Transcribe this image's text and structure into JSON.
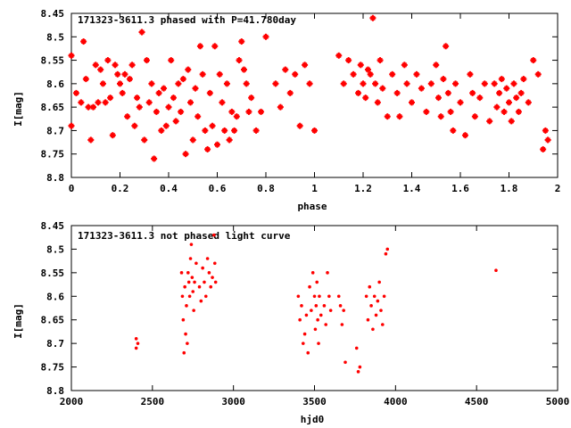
{
  "chart_data": [
    {
      "type": "scatter",
      "title": "171323-3611.3 phased with P=41.780day",
      "xlabel": "phase",
      "ylabel": "I[mag]",
      "xlim": [
        0,
        2
      ],
      "ylim": [
        8.45,
        8.8
      ],
      "y_inverted": true,
      "grid": false,
      "color": "#ff0000",
      "x_ticks": [
        "0",
        "0.2",
        "0.4",
        "0.6",
        "0.8",
        "1",
        "1.2",
        "1.4",
        "1.6",
        "1.8",
        "2"
      ],
      "y_ticks": [
        "8.45",
        "8.5",
        "8.55",
        "8.6",
        "8.65",
        "8.7",
        "8.75",
        "8.8"
      ],
      "points": [
        [
          0.0,
          8.54
        ],
        [
          0.0,
          8.69
        ],
        [
          0.02,
          8.62
        ],
        [
          0.04,
          8.64
        ],
        [
          0.05,
          8.51
        ],
        [
          0.06,
          8.59
        ],
        [
          0.07,
          8.65
        ],
        [
          0.08,
          8.72
        ],
        [
          0.09,
          8.65
        ],
        [
          0.1,
          8.56
        ],
        [
          0.11,
          8.64
        ],
        [
          0.12,
          8.57
        ],
        [
          0.13,
          8.6
        ],
        [
          0.14,
          8.64
        ],
        [
          0.15,
          8.55
        ],
        [
          0.16,
          8.63
        ],
        [
          0.17,
          8.71
        ],
        [
          0.18,
          8.56
        ],
        [
          0.19,
          8.58
        ],
        [
          0.2,
          8.6
        ],
        [
          0.21,
          8.62
        ],
        [
          0.22,
          8.58
        ],
        [
          0.23,
          8.67
        ],
        [
          0.24,
          8.59
        ],
        [
          0.25,
          8.56
        ],
        [
          0.26,
          8.69
        ],
        [
          0.27,
          8.63
        ],
        [
          0.28,
          8.65
        ],
        [
          0.29,
          8.49
        ],
        [
          0.3,
          8.72
        ],
        [
          0.31,
          8.55
        ],
        [
          0.32,
          8.64
        ],
        [
          0.33,
          8.6
        ],
        [
          0.34,
          8.76
        ],
        [
          0.35,
          8.66
        ],
        [
          0.36,
          8.62
        ],
        [
          0.37,
          8.7
        ],
        [
          0.38,
          8.61
        ],
        [
          0.39,
          8.69
        ],
        [
          0.4,
          8.65
        ],
        [
          0.41,
          8.55
        ],
        [
          0.42,
          8.63
        ],
        [
          0.43,
          8.68
        ],
        [
          0.44,
          8.6
        ],
        [
          0.45,
          8.66
        ],
        [
          0.46,
          8.59
        ],
        [
          0.47,
          8.75
        ],
        [
          0.48,
          8.57
        ],
        [
          0.49,
          8.64
        ],
        [
          0.5,
          8.72
        ],
        [
          0.51,
          8.61
        ],
        [
          0.52,
          8.67
        ],
        [
          0.53,
          8.52
        ],
        [
          0.54,
          8.58
        ],
        [
          0.55,
          8.7
        ],
        [
          0.56,
          8.74
        ],
        [
          0.57,
          8.62
        ],
        [
          0.58,
          8.69
        ],
        [
          0.59,
          8.52
        ],
        [
          0.6,
          8.73
        ],
        [
          0.61,
          8.58
        ],
        [
          0.62,
          8.64
        ],
        [
          0.63,
          8.7
        ],
        [
          0.64,
          8.6
        ],
        [
          0.65,
          8.72
        ],
        [
          0.66,
          8.66
        ],
        [
          0.67,
          8.7
        ],
        [
          0.68,
          8.67
        ],
        [
          0.69,
          8.55
        ],
        [
          0.7,
          8.51
        ],
        [
          0.71,
          8.57
        ],
        [
          0.72,
          8.6
        ],
        [
          0.73,
          8.66
        ],
        [
          0.74,
          8.63
        ],
        [
          0.76,
          8.7
        ],
        [
          0.78,
          8.66
        ],
        [
          0.8,
          8.5
        ],
        [
          0.84,
          8.6
        ],
        [
          0.86,
          8.65
        ],
        [
          0.88,
          8.57
        ],
        [
          0.9,
          8.62
        ],
        [
          0.92,
          8.58
        ],
        [
          0.94,
          8.69
        ],
        [
          0.96,
          8.56
        ],
        [
          0.98,
          8.6
        ],
        [
          1.0,
          8.7
        ],
        [
          1.1,
          8.54
        ],
        [
          1.12,
          8.6
        ],
        [
          1.14,
          8.55
        ],
        [
          1.16,
          8.58
        ],
        [
          1.18,
          8.62
        ],
        [
          1.19,
          8.56
        ],
        [
          1.2,
          8.6
        ],
        [
          1.21,
          8.63
        ],
        [
          1.22,
          8.57
        ],
        [
          1.23,
          8.58
        ],
        [
          1.24,
          8.46
        ],
        [
          1.25,
          8.6
        ],
        [
          1.26,
          8.64
        ],
        [
          1.27,
          8.55
        ],
        [
          1.28,
          8.61
        ],
        [
          1.3,
          8.67
        ],
        [
          1.32,
          8.58
        ],
        [
          1.34,
          8.62
        ],
        [
          1.35,
          8.67
        ],
        [
          1.37,
          8.56
        ],
        [
          1.38,
          8.6
        ],
        [
          1.4,
          8.64
        ],
        [
          1.42,
          8.58
        ],
        [
          1.44,
          8.61
        ],
        [
          1.46,
          8.66
        ],
        [
          1.48,
          8.6
        ],
        [
          1.5,
          8.56
        ],
        [
          1.51,
          8.63
        ],
        [
          1.52,
          8.67
        ],
        [
          1.53,
          8.59
        ],
        [
          1.54,
          8.52
        ],
        [
          1.55,
          8.62
        ],
        [
          1.56,
          8.66
        ],
        [
          1.57,
          8.7
        ],
        [
          1.58,
          8.6
        ],
        [
          1.6,
          8.64
        ],
        [
          1.62,
          8.71
        ],
        [
          1.64,
          8.58
        ],
        [
          1.65,
          8.62
        ],
        [
          1.66,
          8.67
        ],
        [
          1.68,
          8.63
        ],
        [
          1.7,
          8.6
        ],
        [
          1.72,
          8.68
        ],
        [
          1.74,
          8.6
        ],
        [
          1.75,
          8.65
        ],
        [
          1.76,
          8.62
        ],
        [
          1.77,
          8.59
        ],
        [
          1.78,
          8.66
        ],
        [
          1.79,
          8.61
        ],
        [
          1.8,
          8.64
        ],
        [
          1.81,
          8.68
        ],
        [
          1.82,
          8.6
        ],
        [
          1.83,
          8.63
        ],
        [
          1.84,
          8.66
        ],
        [
          1.85,
          8.62
        ],
        [
          1.86,
          8.59
        ],
        [
          1.88,
          8.64
        ],
        [
          1.9,
          8.55
        ],
        [
          1.92,
          8.58
        ],
        [
          1.94,
          8.74
        ],
        [
          1.95,
          8.7
        ],
        [
          1.96,
          8.72
        ]
      ]
    },
    {
      "type": "scatter",
      "title": "171323-3611.3 not phased light curve",
      "xlabel": "hjd0",
      "ylabel": "I[mag]",
      "xlim": [
        2000,
        5000
      ],
      "ylim": [
        8.45,
        8.8
      ],
      "y_inverted": true,
      "grid": false,
      "color": "#ff0000",
      "x_ticks": [
        "2000",
        "2500",
        "3000",
        "3500",
        "4000",
        "4500",
        "5000"
      ],
      "y_ticks": [
        "8.45",
        "8.5",
        "8.55",
        "8.6",
        "8.65",
        "8.7",
        "8.75",
        "8.8"
      ],
      "points": [
        [
          2400,
          8.69
        ],
        [
          2400,
          8.71
        ],
        [
          2410,
          8.7
        ],
        [
          2680,
          8.55
        ],
        [
          2685,
          8.6
        ],
        [
          2690,
          8.65
        ],
        [
          2695,
          8.72
        ],
        [
          2700,
          8.58
        ],
        [
          2705,
          8.68
        ],
        [
          2710,
          8.62
        ],
        [
          2715,
          8.7
        ],
        [
          2720,
          8.55
        ],
        [
          2725,
          8.57
        ],
        [
          2730,
          8.6
        ],
        [
          2735,
          8.52
        ],
        [
          2740,
          8.49
        ],
        [
          2745,
          8.56
        ],
        [
          2750,
          8.59
        ],
        [
          2755,
          8.63
        ],
        [
          2760,
          8.57
        ],
        [
          2770,
          8.53
        ],
        [
          2790,
          8.58
        ],
        [
          2800,
          8.61
        ],
        [
          2810,
          8.54
        ],
        [
          2820,
          8.57
        ],
        [
          2830,
          8.6
        ],
        [
          2840,
          8.52
        ],
        [
          2850,
          8.55
        ],
        [
          2860,
          8.58
        ],
        [
          2870,
          8.56
        ],
        [
          2880,
          8.47
        ],
        [
          2885,
          8.53
        ],
        [
          2890,
          8.57
        ],
        [
          3400,
          8.6
        ],
        [
          3410,
          8.65
        ],
        [
          3420,
          8.62
        ],
        [
          3430,
          8.7
        ],
        [
          3440,
          8.68
        ],
        [
          3450,
          8.64
        ],
        [
          3460,
          8.72
        ],
        [
          3470,
          8.58
        ],
        [
          3480,
          8.63
        ],
        [
          3490,
          8.55
        ],
        [
          3500,
          8.6
        ],
        [
          3505,
          8.67
        ],
        [
          3510,
          8.62
        ],
        [
          3515,
          8.57
        ],
        [
          3520,
          8.65
        ],
        [
          3525,
          8.7
        ],
        [
          3530,
          8.6
        ],
        [
          3540,
          8.64
        ],
        [
          3560,
          8.62
        ],
        [
          3570,
          8.66
        ],
        [
          3580,
          8.55
        ],
        [
          3590,
          8.6
        ],
        [
          3600,
          8.63
        ],
        [
          3650,
          8.6
        ],
        [
          3660,
          8.62
        ],
        [
          3670,
          8.66
        ],
        [
          3680,
          8.63
        ],
        [
          3690,
          8.74
        ],
        [
          3760,
          8.71
        ],
        [
          3770,
          8.76
        ],
        [
          3780,
          8.75
        ],
        [
          3820,
          8.6
        ],
        [
          3830,
          8.65
        ],
        [
          3840,
          8.58
        ],
        [
          3850,
          8.62
        ],
        [
          3860,
          8.67
        ],
        [
          3870,
          8.6
        ],
        [
          3880,
          8.64
        ],
        [
          3890,
          8.61
        ],
        [
          3900,
          8.57
        ],
        [
          3910,
          8.63
        ],
        [
          3920,
          8.66
        ],
        [
          3930,
          8.6
        ],
        [
          3940,
          8.51
        ],
        [
          3950,
          8.5
        ],
        [
          4620,
          8.545
        ]
      ]
    }
  ]
}
